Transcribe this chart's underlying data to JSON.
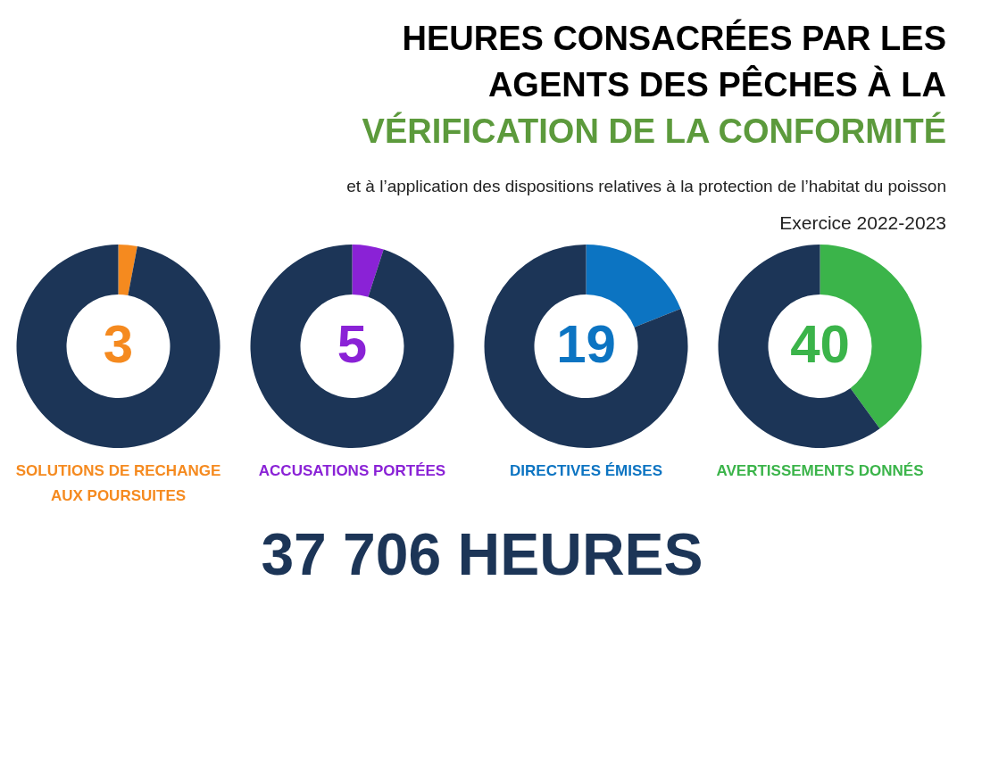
{
  "chart_data": [
    {
      "type": "other",
      "title": "HEURES CONSACRÉES PAR LES AGENTS DES PÊCHES À LA VÉRIFICATION DE LA CONFORMITÉ",
      "subtitle": "et à l’application des dispositions relatives à la protection de l’habitat du poisson",
      "annotations": [
        "Exercice 2022-2023"
      ]
    },
    {
      "type": "donut",
      "title": "SOLUTIONS DE RECHANGE AUX POURSUITES",
      "categories": [
        null,
        null
      ],
      "values": [
        3,
        97
      ],
      "colors": [
        "#f58a1f",
        "#1c3557"
      ],
      "value_labels": [
        "3",
        null
      ]
    },
    {
      "type": "donut",
      "title": "ACCUSATIONS PORTÉES",
      "categories": [
        null,
        null
      ],
      "values": [
        5,
        95
      ],
      "colors": [
        "#8a22d6",
        "#1c3557"
      ],
      "value_labels": [
        "5",
        null
      ]
    },
    {
      "type": "donut",
      "title": "DIRECTIVES ÉMISES",
      "categories": [
        null,
        null
      ],
      "values": [
        19,
        81
      ],
      "colors": [
        "#0c74c2",
        "#1c3557"
      ],
      "value_labels": [
        "19",
        null
      ]
    },
    {
      "type": "donut",
      "title": "AVERTISSEMENTS DONNÉS",
      "categories": [
        null,
        null
      ],
      "values": [
        40,
        60
      ],
      "colors": [
        "#3bb44a",
        "#1c3557"
      ],
      "value_labels": [
        "40",
        null
      ]
    },
    {
      "type": "other",
      "annotations": [
        "37 706 HEURES"
      ]
    }
  ]
}
